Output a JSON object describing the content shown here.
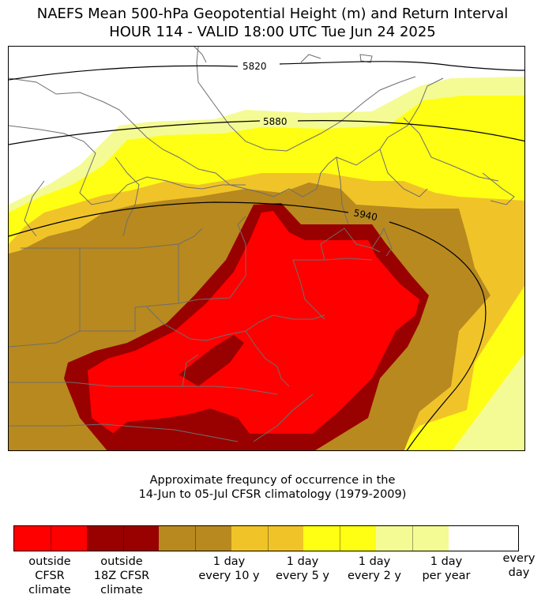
{
  "title": {
    "line1": "NAEFS Mean 500-hPa Geopotential Height (m) and Return Interval",
    "line2": "HOUR 114 - VALID 18:00 UTC Tue Jun 24 2025"
  },
  "caption": {
    "line1": "Approximate frequncy of occurrence in the",
    "line2": "14-Jun to 05-Jul CFSR climatology (1979-2009)"
  },
  "contours": [
    {
      "value": "5820"
    },
    {
      "value": "5880"
    },
    {
      "value": "5940"
    }
  ],
  "legend": {
    "segments": [
      {
        "color": "#ff0000",
        "label": "outside\nCFSR\nclimate"
      },
      {
        "color": "#990000",
        "label": "outside\n18Z CFSR\nclimate"
      },
      {
        "color": "#b8891f",
        "label": "1 day\nevery 10 y"
      },
      {
        "color": "#f0c428",
        "label": "1 day\nevery 5 y"
      },
      {
        "color": "#ffff14",
        "label": "1 day\nevery 2 y"
      },
      {
        "color": "#f4fb94",
        "label": "1 day\nper year"
      },
      {
        "color": "#ffffff",
        "label": "every\nday"
      }
    ]
  }
}
